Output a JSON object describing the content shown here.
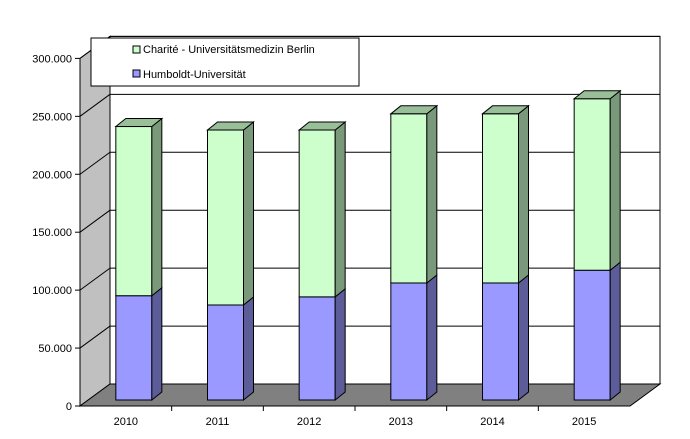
{
  "chart_data": {
    "type": "bar",
    "stacked": true,
    "three_d": true,
    "title": "",
    "xlabel": "",
    "ylabel": "",
    "categories": [
      "2010",
      "2011",
      "2012",
      "2013",
      "2014",
      "2015"
    ],
    "ylim": [
      0,
      300000
    ],
    "y_ticks": [
      0,
      50000,
      100000,
      150000,
      200000,
      250000,
      300000
    ],
    "y_tick_labels": [
      "0",
      "50.000",
      "100.000",
      "150.000",
      "200.000",
      "250.000",
      "300.000"
    ],
    "grid": true,
    "legend_position": "top-left",
    "series": [
      {
        "name": "Humboldt-Universität",
        "color": "#9999ff",
        "values": [
          90000,
          82000,
          89000,
          101000,
          101000,
          112000
        ]
      },
      {
        "name": "Charité - Universitätsmedizin Berlin",
        "color": "#ccffcc",
        "values": [
          146000,
          151000,
          144000,
          146000,
          146000,
          148000
        ]
      }
    ],
    "legend_order": [
      1,
      0
    ],
    "colors": {
      "wall": "#ffffff",
      "side_wall": "#c0c0c0",
      "floor": "#808080",
      "gridline": "#000000"
    }
  }
}
